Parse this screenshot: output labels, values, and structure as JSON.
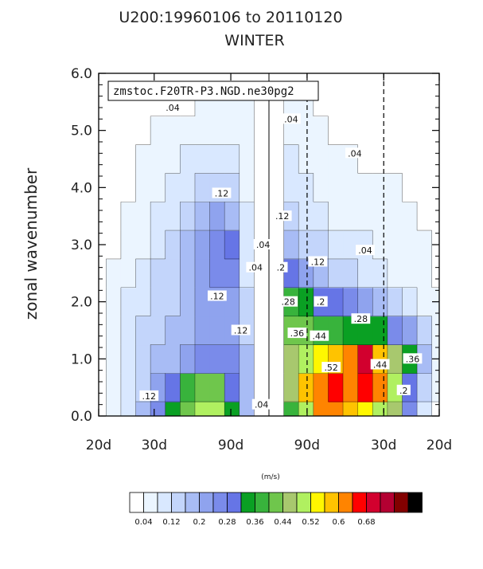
{
  "chart_data": {
    "type": "heatmap",
    "title": "U200:19960106 to 20110120",
    "subtitle": "WINTER",
    "ylabel": "zonal wavenumber",
    "xlabel": "",
    "info_label": "zmstoc.F20TR-P3.NGD.ne30pg2",
    "units_label": "(m/s)",
    "x_tick_labels": [
      "20d",
      "30d",
      "90d",
      "90d",
      "30d",
      "20d"
    ],
    "y_ticks": [
      0.0,
      1.0,
      2.0,
      3.0,
      4.0,
      5.0,
      6.0
    ],
    "y_tick_labels": [
      "0.0",
      "1.0",
      "2.0",
      "3.0",
      "4.0",
      "5.0",
      "6.0"
    ],
    "ylim": [
      0,
      6
    ],
    "x_columns": 24,
    "y_rows": [
      0.0,
      0.5,
      1.0,
      1.5,
      2.0,
      2.5,
      3.0,
      3.5,
      4.0,
      4.5,
      5.0,
      5.5,
      6.0
    ],
    "contour_interval": 0.04,
    "values": [
      [
        0.02,
        0.05,
        0.09,
        0.16,
        0.26,
        0.34,
        0.4,
        0.48,
        0.5,
        0.34,
        0.18,
        0.03,
        0.02,
        0.38,
        0.5,
        0.62,
        0.6,
        0.56,
        0.54,
        0.5,
        0.44,
        0.26,
        0.09,
        0.03
      ],
      [
        0.02,
        0.06,
        0.1,
        0.15,
        0.22,
        0.3,
        0.36,
        0.4,
        0.4,
        0.3,
        0.18,
        0.03,
        0.03,
        0.46,
        0.58,
        0.62,
        0.64,
        0.62,
        0.66,
        0.6,
        0.48,
        0.3,
        0.12,
        0.04
      ],
      [
        0.02,
        0.06,
        0.1,
        0.13,
        0.16,
        0.18,
        0.22,
        0.24,
        0.26,
        0.24,
        0.16,
        0.03,
        0.03,
        0.44,
        0.48,
        0.54,
        0.58,
        0.62,
        0.7,
        0.56,
        0.44,
        0.34,
        0.18,
        0.06
      ],
      [
        0.02,
        0.06,
        0.09,
        0.12,
        0.14,
        0.16,
        0.18,
        0.2,
        0.22,
        0.2,
        0.14,
        0.03,
        0.03,
        0.42,
        0.4,
        0.38,
        0.36,
        0.34,
        0.34,
        0.32,
        0.26,
        0.2,
        0.12,
        0.05
      ],
      [
        0.02,
        0.05,
        0.08,
        0.11,
        0.13,
        0.15,
        0.17,
        0.2,
        0.21,
        0.2,
        0.13,
        0.03,
        0.03,
        0.36,
        0.32,
        0.3,
        0.28,
        0.24,
        0.22,
        0.18,
        0.14,
        0.1,
        0.07,
        0.04
      ],
      [
        0.02,
        0.04,
        0.07,
        0.09,
        0.12,
        0.15,
        0.18,
        0.22,
        0.26,
        0.24,
        0.11,
        0.03,
        0.03,
        0.28,
        0.22,
        0.18,
        0.15,
        0.13,
        0.11,
        0.09,
        0.07,
        0.06,
        0.04,
        0.03
      ],
      [
        0.02,
        0.03,
        0.05,
        0.07,
        0.1,
        0.14,
        0.18,
        0.22,
        0.26,
        0.3,
        0.09,
        0.03,
        0.03,
        0.18,
        0.14,
        0.12,
        0.11,
        0.1,
        0.08,
        0.07,
        0.06,
        0.05,
        0.04,
        0.03
      ],
      [
        0.02,
        0.03,
        0.04,
        0.05,
        0.08,
        0.11,
        0.14,
        0.17,
        0.2,
        0.18,
        0.08,
        0.03,
        0.03,
        0.13,
        0.1,
        0.08,
        0.07,
        0.06,
        0.06,
        0.05,
        0.05,
        0.04,
        0.03,
        0.03
      ],
      [
        0.02,
        0.02,
        0.03,
        0.04,
        0.06,
        0.09,
        0.11,
        0.13,
        0.14,
        0.13,
        0.07,
        0.03,
        0.03,
        0.1,
        0.08,
        0.06,
        0.05,
        0.05,
        0.04,
        0.04,
        0.04,
        0.03,
        0.03,
        0.02
      ],
      [
        0.02,
        0.02,
        0.03,
        0.04,
        0.05,
        0.06,
        0.08,
        0.09,
        0.1,
        0.1,
        0.06,
        0.03,
        0.03,
        0.08,
        0.06,
        0.05,
        0.04,
        0.04,
        0.03,
        0.03,
        0.03,
        0.03,
        0.02,
        0.02
      ],
      [
        0.02,
        0.02,
        0.03,
        0.03,
        0.04,
        0.05,
        0.05,
        0.06,
        0.07,
        0.07,
        0.05,
        0.03,
        0.03,
        0.06,
        0.05,
        0.04,
        0.03,
        0.03,
        0.03,
        0.03,
        0.02,
        0.02,
        0.02,
        0.02
      ],
      [
        0.02,
        0.02,
        0.02,
        0.03,
        0.03,
        0.03,
        0.03,
        0.04,
        0.05,
        0.05,
        0.04,
        0.03,
        0.03,
        0.04,
        0.04,
        0.03,
        0.03,
        0.03,
        0.02,
        0.02,
        0.02,
        0.02,
        0.02,
        0.02
      ],
      [
        0.02,
        0.02,
        0.02,
        0.02,
        0.02,
        0.02,
        0.02,
        0.03,
        0.03,
        0.03,
        0.03,
        0.03,
        0.03,
        0.03,
        0.03,
        0.03,
        0.02,
        0.02,
        0.02,
        0.02,
        0.02,
        0.02,
        0.02,
        0.02
      ]
    ],
    "contour_labels": [
      {
        "text": ".04",
        "x": 5.0,
        "y": 5.4
      },
      {
        "text": ".04",
        "x": 13.0,
        "y": 5.2
      },
      {
        "text": ".04",
        "x": 17.3,
        "y": 4.6
      },
      {
        "text": ".04",
        "x": 18.0,
        "y": 2.9
      },
      {
        "text": ".04",
        "x": 10.6,
        "y": 2.6
      },
      {
        "text": ".04",
        "x": 11.1,
        "y": 3.0
      },
      {
        "text": ".04",
        "x": 11.0,
        "y": 0.2
      },
      {
        "text": ".12",
        "x": 8.3,
        "y": 3.9
      },
      {
        "text": ".12",
        "x": 12.4,
        "y": 3.5
      },
      {
        "text": ".12",
        "x": 14.8,
        "y": 2.7
      },
      {
        "text": ".12",
        "x": 8.0,
        "y": 2.1
      },
      {
        "text": ".12",
        "x": 9.6,
        "y": 1.5
      },
      {
        "text": ".12",
        "x": 3.4,
        "y": 0.35
      },
      {
        "text": ".2",
        "x": 12.3,
        "y": 2.6
      },
      {
        "text": ".2",
        "x": 15.0,
        "y": 2.0
      },
      {
        "text": ".2",
        "x": 20.6,
        "y": 0.45
      },
      {
        "text": ".28",
        "x": 12.8,
        "y": 2.0
      },
      {
        "text": ".28",
        "x": 17.7,
        "y": 1.7
      },
      {
        "text": ".36",
        "x": 13.4,
        "y": 1.45
      },
      {
        "text": ".36",
        "x": 21.2,
        "y": 1.0
      },
      {
        "text": ".44",
        "x": 14.9,
        "y": 1.4
      },
      {
        "text": ".44",
        "x": 19.0,
        "y": 0.9
      },
      {
        "text": ".52",
        "x": 15.7,
        "y": 0.85
      }
    ],
    "colorbar": {
      "colors": [
        "#ffffff",
        "#ebf5ff",
        "#d9e8ff",
        "#c3d5fb",
        "#a8bcf5",
        "#8fa3ee",
        "#7a8bea",
        "#6675e6",
        "#0aa023",
        "#38b33c",
        "#6fc64c",
        "#a8c86e",
        "#b0f060",
        "#fff700",
        "#ffc300",
        "#ff8400",
        "#ff0000",
        "#d2002e",
        "#b40032",
        "#820000",
        "#000000"
      ],
      "tick_labels": [
        "0.04",
        "0.12",
        "0.2",
        "0.28",
        "0.36",
        "0.44",
        "0.52",
        "0.6",
        "0.68"
      ]
    }
  }
}
